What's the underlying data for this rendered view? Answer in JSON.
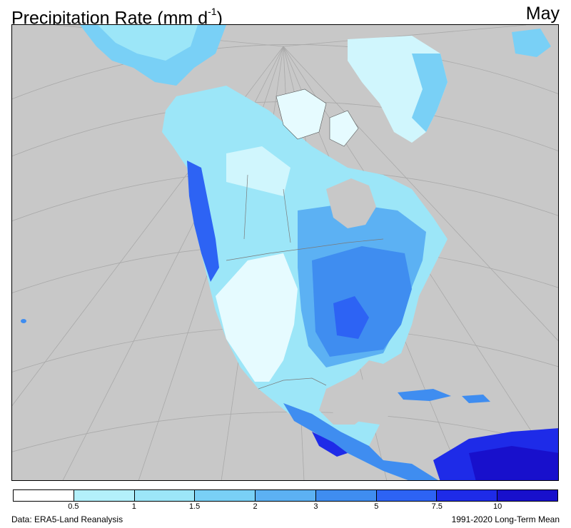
{
  "title": {
    "main": "Precipitation Rate (mm d",
    "superscript": "-1",
    "close": ")"
  },
  "month": "May",
  "footer": {
    "source": "Data: ERA5-Land Reanalysis",
    "period": "1991-2020 Long-Term Mean"
  },
  "legend": {
    "colors": [
      "#ffffff",
      "#b3f0fb",
      "#9ce6f8",
      "#79d0f6",
      "#5cb1f3",
      "#3f8df0",
      "#2d63f4",
      "#1e2be8",
      "#1810cc"
    ],
    "ticks": [
      "0.5",
      "1",
      "1.5",
      "2",
      "3",
      "5",
      "7.5",
      "10"
    ]
  },
  "map": {
    "ocean_color": "#c8c8c8",
    "grid_color": "#a9a9a9",
    "border_color": "#7a7a7a"
  }
}
